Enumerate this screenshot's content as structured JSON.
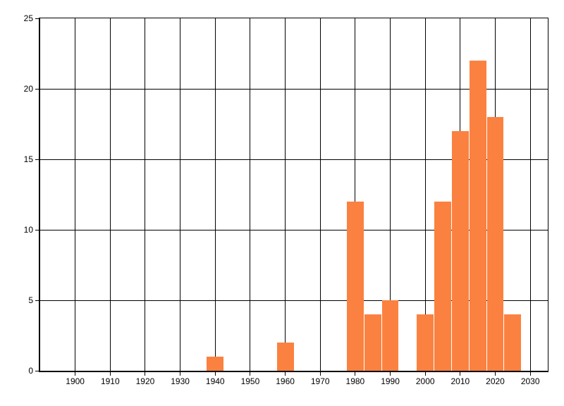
{
  "chart_data": {
    "type": "bar",
    "title": "",
    "xlabel": "",
    "ylabel": "",
    "categories": [
      1940,
      1960,
      1980,
      1985,
      1990,
      2000,
      2005,
      2010,
      2015,
      2020,
      2025
    ],
    "values": [
      1,
      2,
      12,
      4,
      5,
      4,
      12,
      17,
      22,
      18,
      4
    ],
    "x_tick_labels": [
      "1900",
      "1910",
      "1920",
      "1930",
      "1940",
      "1950",
      "1960",
      "1970",
      "1980",
      "1990",
      "2000",
      "2010",
      "2020",
      "2030"
    ],
    "x_tick_years": [
      1900,
      1910,
      1920,
      1930,
      1940,
      1950,
      1960,
      1970,
      1980,
      1990,
      2000,
      2010,
      2020,
      2030
    ],
    "y_tick_labels": [
      "0",
      "5",
      "10",
      "15",
      "20",
      "25"
    ],
    "y_tick_values": [
      0,
      5,
      10,
      15,
      20,
      25
    ],
    "xlim": [
      1890,
      2035
    ],
    "ylim": [
      0,
      25
    ],
    "grid": true,
    "legend": "none",
    "bar_color": "#fb8140",
    "axis_color": "#000000",
    "background_color": "#ffffff",
    "bar_width_years": 4
  }
}
